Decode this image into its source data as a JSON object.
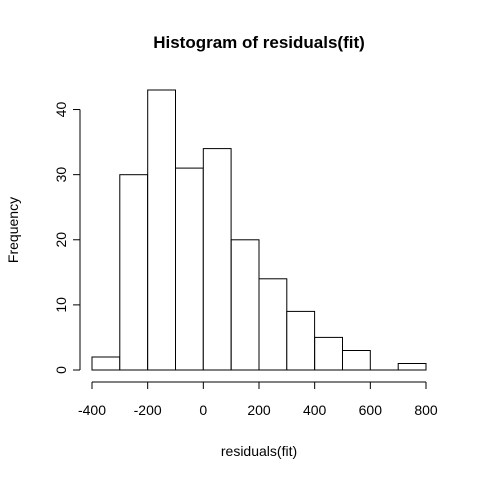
{
  "chart_data": {
    "type": "bar",
    "title": "Histogram of residuals(fit)",
    "xlabel": "residuals(fit)",
    "ylabel": "Frequency",
    "bin_edges": [
      -400,
      -300,
      -200,
      -100,
      0,
      100,
      200,
      300,
      400,
      500,
      600,
      700,
      800
    ],
    "values": [
      2,
      30,
      43,
      31,
      34,
      20,
      14,
      9,
      5,
      3,
      0,
      1
    ],
    "x_ticks": [
      -400,
      -200,
      0,
      200,
      400,
      600,
      800
    ],
    "x_tick_labels": [
      "-400",
      "-200",
      "0",
      "200",
      "400",
      "600",
      "800"
    ],
    "y_ticks": [
      0,
      10,
      20,
      30,
      40
    ],
    "y_tick_labels": [
      "0",
      "10",
      "20",
      "30",
      "40"
    ],
    "xlim": [
      -400,
      800
    ],
    "ylim": [
      0,
      43
    ],
    "grid": false,
    "colors": {
      "bar_fill": "#ffffff",
      "bar_stroke": "#000000"
    }
  }
}
